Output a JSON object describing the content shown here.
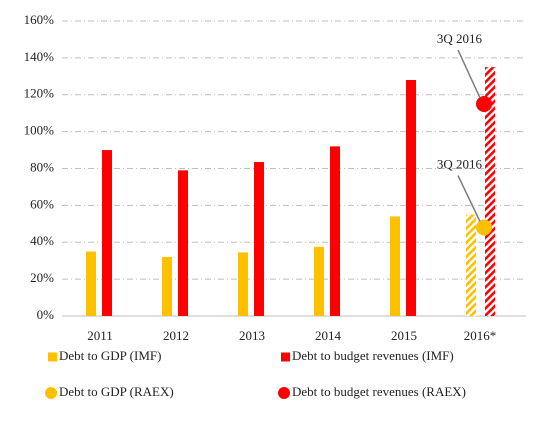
{
  "chart_data": {
    "type": "bar",
    "categories": [
      "2011",
      "2012",
      "2013",
      "2014",
      "2015",
      "2016*"
    ],
    "series": [
      {
        "name": "Debt to GDP (IMF)",
        "color": "#ffc000",
        "marker": "square",
        "values": [
          35,
          32,
          34.5,
          37.5,
          54,
          55
        ],
        "hatched": [
          false,
          false,
          false,
          false,
          false,
          true
        ]
      },
      {
        "name": "Debt to budget revenues (IMF)",
        "color": "#ff0000",
        "marker": "square",
        "values": [
          90,
          79,
          83.5,
          92,
          128,
          135
        ],
        "hatched": [
          false,
          false,
          false,
          false,
          false,
          true
        ]
      },
      {
        "name": "Debt to GDP (RAEX)",
        "color": "#ffc000",
        "marker": "circle",
        "values": [
          null,
          null,
          null,
          null,
          null,
          48
        ]
      },
      {
        "name": "Debt to budget revenues (RAEX)",
        "color": "#ff0000",
        "marker": "circle",
        "values": [
          null,
          null,
          null,
          null,
          null,
          115
        ]
      }
    ],
    "annotations": [
      "3Q 2016",
      "3Q 2016"
    ],
    "ylim": [
      0,
      160
    ],
    "yticks": [
      {
        "value": 0,
        "label": "0%"
      },
      {
        "value": 20,
        "label": "20%"
      },
      {
        "value": 40,
        "label": "40%"
      },
      {
        "value": 60,
        "label": "60%"
      },
      {
        "value": 80,
        "label": "80%"
      },
      {
        "value": 100,
        "label": "100%"
      },
      {
        "value": 120,
        "label": "120%"
      },
      {
        "value": 140,
        "label": "140%"
      },
      {
        "value": 160,
        "label": "160%"
      }
    ],
    "grid": true
  }
}
